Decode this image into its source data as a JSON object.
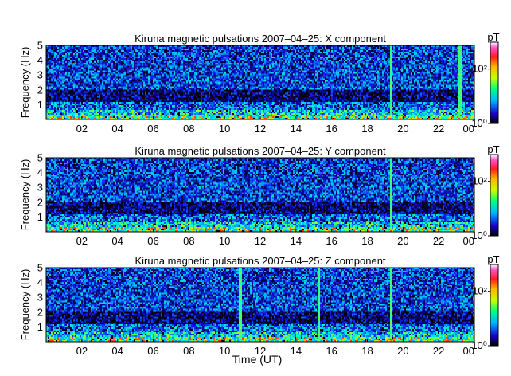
{
  "chart_data": [
    {
      "type": "heatmap",
      "title": "Kiruna magnetic pulsations 2007–04–25: X component",
      "ylabel": "Frequency (Hz)",
      "xlabel": "",
      "ylim": [
        0,
        5
      ],
      "yticks": [
        "1",
        "2",
        "3",
        "4",
        "5"
      ],
      "xticks": [
        "02",
        "04",
        "06",
        "08",
        "10",
        "12",
        "14",
        "16",
        "18",
        "20",
        "22",
        "00"
      ],
      "colorbar": {
        "unit": "pT",
        "scale": "log",
        "ticks": [
          "10⁰",
          "10²"
        ]
      },
      "features": {
        "bright_low_band_hz": [
          0,
          0.5
        ],
        "dark_band_hz": [
          1.2,
          2.0
        ],
        "spikes_ut": [
          19.3,
          23.2
        ]
      }
    },
    {
      "type": "heatmap",
      "title": "Kiruna magnetic pulsations 2007–04–25: Y component",
      "ylabel": "Frequency (Hz)",
      "xlabel": "",
      "ylim": [
        0,
        5
      ],
      "yticks": [
        "1",
        "2",
        "3",
        "4",
        "5"
      ],
      "xticks": [
        "02",
        "04",
        "06",
        "08",
        "10",
        "12",
        "14",
        "16",
        "18",
        "20",
        "22",
        "00"
      ],
      "colorbar": {
        "unit": "pT",
        "scale": "log",
        "ticks": [
          "10⁰",
          "10²"
        ]
      },
      "features": {
        "bright_low_band_hz": [
          0,
          0.5
        ],
        "dark_band_hz": [
          1.2,
          2.0
        ],
        "spikes_ut": [
          19.3
        ]
      }
    },
    {
      "type": "heatmap",
      "title": "Kiruna magnetic pulsations 2007–04–25: Z component",
      "ylabel": "Frequency (Hz)",
      "xlabel": "Time (UT)",
      "ylim": [
        0,
        5
      ],
      "yticks": [
        "1",
        "2",
        "3",
        "4",
        "5"
      ],
      "xticks": [
        "02",
        "04",
        "06",
        "08",
        "10",
        "12",
        "14",
        "16",
        "18",
        "20",
        "22",
        "00"
      ],
      "colorbar": {
        "unit": "pT",
        "scale": "log",
        "ticks": [
          "10⁰",
          "10²"
        ]
      },
      "features": {
        "bright_low_band_hz": [
          0,
          0.5
        ],
        "dark_band_hz": [
          1.2,
          2.0
        ],
        "spikes_ut": [
          10.9,
          15.3,
          19.3
        ]
      }
    }
  ]
}
